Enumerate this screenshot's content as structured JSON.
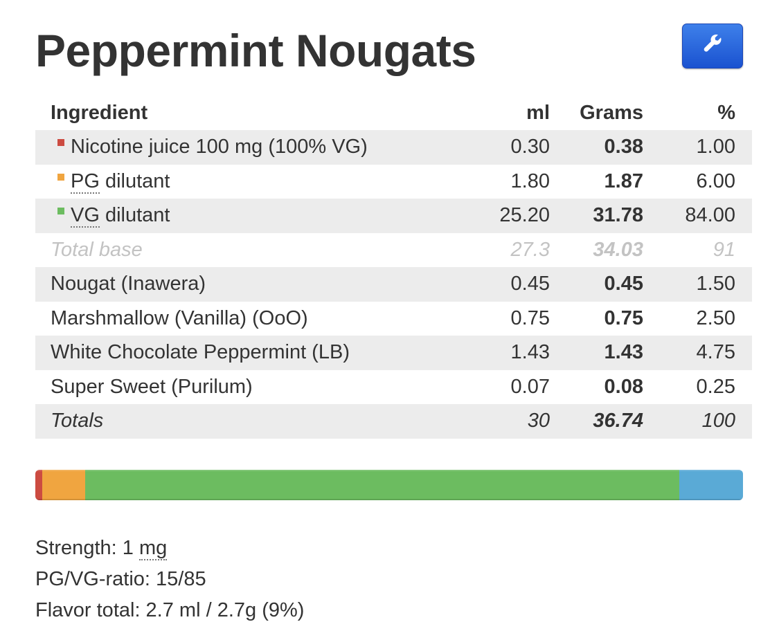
{
  "recipe": {
    "title": "Peppermint Nougats",
    "tool_icon": "wrench-icon"
  },
  "table": {
    "headers": {
      "name": "Ingredient",
      "ml": "ml",
      "grams": "Grams",
      "pct": "%"
    },
    "rows": [
      {
        "name": "Nicotine juice 100 mg (100% VG)",
        "ml": "0.30",
        "grams": "0.38",
        "pct": "1.00",
        "color": "#cc4b41",
        "kind": "base"
      },
      {
        "name_abbr": "PG",
        "name_rest": " dilutant",
        "ml": "1.80",
        "grams": "1.87",
        "pct": "6.00",
        "color": "#f0a540",
        "kind": "base"
      },
      {
        "name_abbr": "VG",
        "name_rest": " dilutant",
        "ml": "25.20",
        "grams": "31.78",
        "pct": "84.00",
        "color": "#6cbc60",
        "kind": "base"
      },
      {
        "name": "Total base",
        "ml": "27.3",
        "grams": "34.03",
        "pct": "91",
        "kind": "subtotal"
      },
      {
        "name": "Nougat (Inawera)",
        "ml": "0.45",
        "grams": "0.45",
        "pct": "1.50",
        "kind": "flavor"
      },
      {
        "name": "Marshmallow (Vanilla) (OoO)",
        "ml": "0.75",
        "grams": "0.75",
        "pct": "2.50",
        "kind": "flavor"
      },
      {
        "name": "White Chocolate Peppermint (LB)",
        "ml": "1.43",
        "grams": "1.43",
        "pct": "4.75",
        "kind": "flavor"
      },
      {
        "name": "Super Sweet (Purilum)",
        "ml": "0.07",
        "grams": "0.08",
        "pct": "0.25",
        "kind": "flavor"
      },
      {
        "name": "Totals",
        "ml": "30",
        "grams": "36.74",
        "pct": "100",
        "kind": "totals"
      }
    ]
  },
  "mix_bar": {
    "segments": [
      {
        "label": "Nicotine juice",
        "percent": 1.0,
        "color": "#cc4b41"
      },
      {
        "label": "PG dilutant",
        "percent": 6.0,
        "color": "#f0a540"
      },
      {
        "label": "VG dilutant",
        "percent": 84.0,
        "color": "#6cbc60"
      },
      {
        "label": "Flavors",
        "percent": 9.0,
        "color": "#5aaad6"
      }
    ]
  },
  "info": {
    "strength_label": "Strength: 1 ",
    "strength_unit": "mg",
    "pgvg": "PG/VG-ratio: 15/85",
    "flavor_total": "Flavor total: 2.7 ml / 2.7g (9%)"
  }
}
